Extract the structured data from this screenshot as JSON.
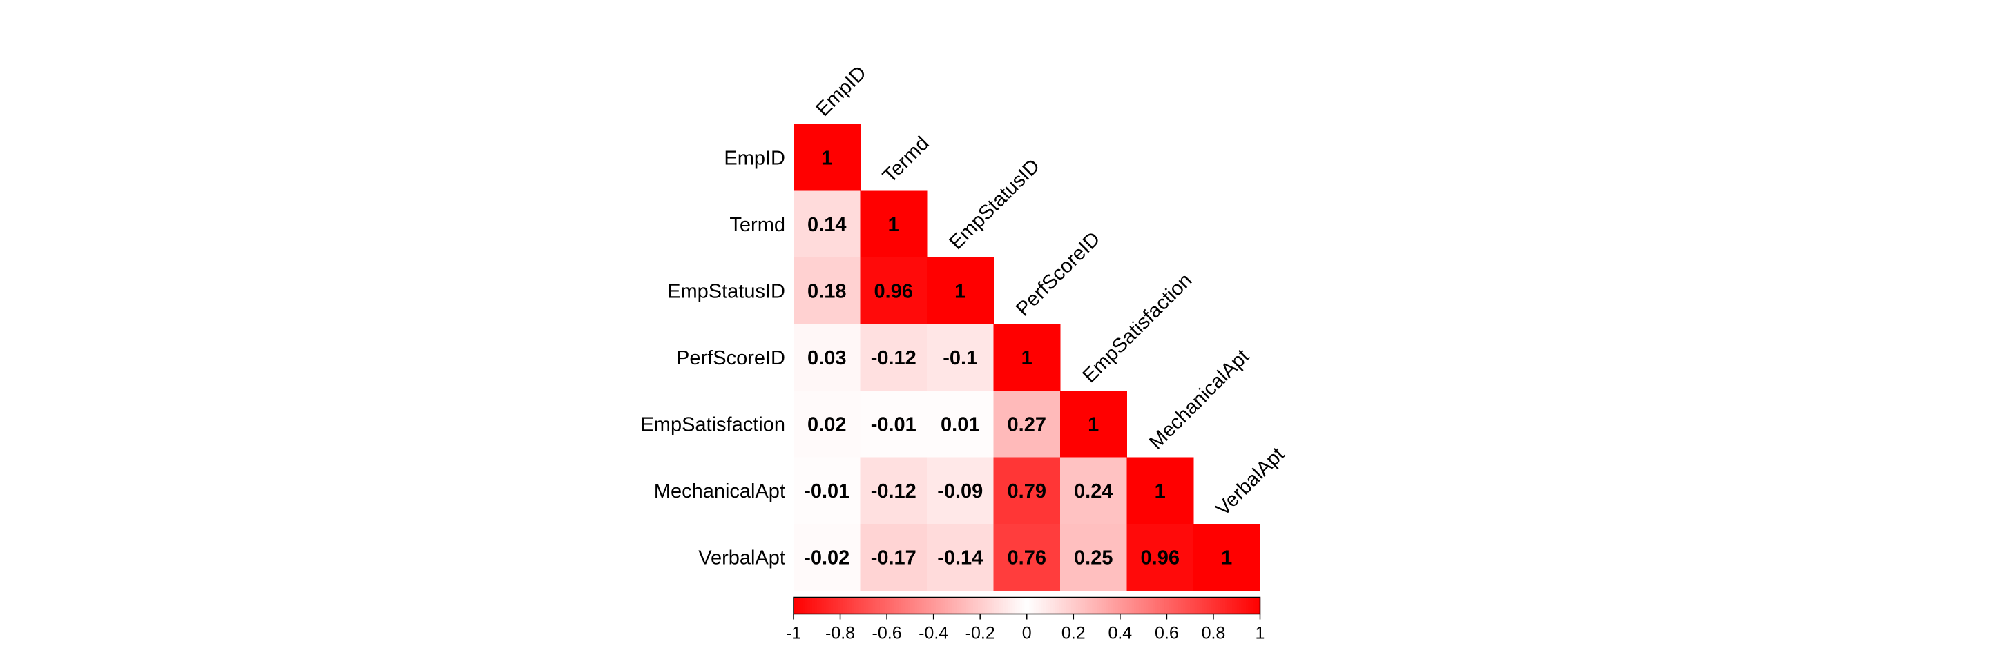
{
  "chart_data": {
    "type": "heatmap",
    "title": "",
    "variables": [
      "EmpID",
      "Termd",
      "EmpStatusID",
      "PerfScoreID",
      "EmpSatisfaction",
      "MechanicalApt",
      "VerbalApt"
    ],
    "matrix_lower": [
      [
        1
      ],
      [
        0.14,
        1
      ],
      [
        0.18,
        0.96,
        1
      ],
      [
        0.03,
        -0.12,
        -0.1,
        1
      ],
      [
        0.02,
        -0.01,
        0.01,
        0.27,
        1
      ],
      [
        -0.01,
        -0.12,
        -0.09,
        0.79,
        0.24,
        1
      ],
      [
        -0.02,
        -0.17,
        -0.14,
        0.76,
        0.25,
        0.96,
        1
      ]
    ],
    "colorbar": {
      "min": -1,
      "max": 1,
      "ticks": [
        -1,
        -0.8,
        -0.6,
        -0.4,
        -0.2,
        0,
        0.2,
        0.4,
        0.6,
        0.8,
        1
      ],
      "tick_labels": [
        "-1",
        "-0.8",
        "-0.6",
        "-0.4",
        "-0.2",
        "0",
        "0.2",
        "0.4",
        "0.6",
        "0.8",
        "1"
      ],
      "position": "bottom"
    },
    "colors": {
      "negative": "#ff0000",
      "zero": "#ffffff",
      "positive": "#ff0000"
    }
  }
}
